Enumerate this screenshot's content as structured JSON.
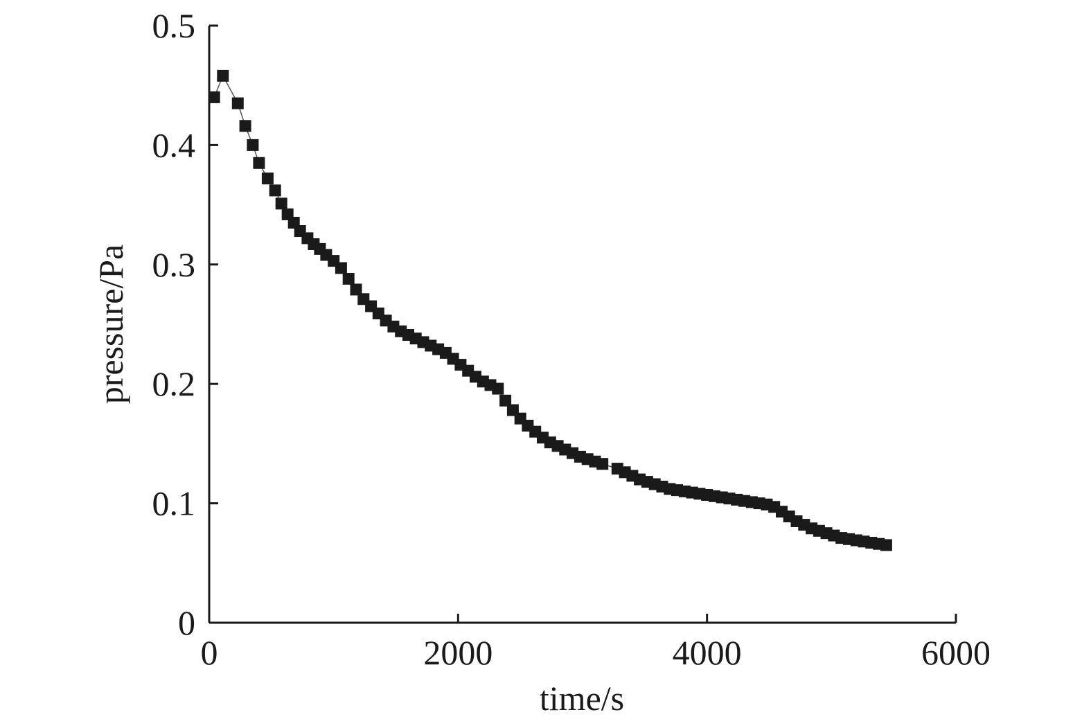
{
  "chart_data": {
    "type": "line",
    "title": "",
    "xlabel": "time/s",
    "ylabel": "pressure/Pa",
    "xlim": [
      0,
      6000
    ],
    "ylim": [
      0,
      0.5
    ],
    "x_ticks": [
      0,
      2000,
      4000,
      6000
    ],
    "x_tick_labels": [
      "0",
      "2000",
      "4000",
      "6000"
    ],
    "y_ticks": [
      0,
      0.1,
      0.2,
      0.3,
      0.4,
      0.5
    ],
    "y_tick_labels": [
      "0",
      "0.1",
      "0.2",
      "0.3",
      "0.4",
      "0.5"
    ],
    "grid": false,
    "marker": "square",
    "series": [
      {
        "color": "#1a1a1a",
        "x": [
          40,
          110,
          230,
          290,
          350,
          400,
          470,
          530,
          580,
          630,
          680,
          730,
          790,
          840,
          890,
          940,
          1000,
          1060,
          1120,
          1180,
          1240,
          1300,
          1360,
          1420,
          1480,
          1540,
          1600,
          1660,
          1720,
          1780,
          1840,
          1900,
          1960,
          2020,
          2080,
          2140,
          2200,
          2260,
          2320,
          2380,
          2440,
          2500,
          2560,
          2620,
          2680,
          2740,
          2800,
          2860,
          2920,
          2980,
          3040,
          3100,
          3160,
          3280,
          3340,
          3400,
          3460,
          3520,
          3580,
          3640,
          3700,
          3760,
          3820,
          3880,
          3940,
          4000,
          4060,
          4120,
          4180,
          4240,
          4300,
          4360,
          4420,
          4480,
          4540,
          4600,
          4660,
          4720,
          4780,
          4840,
          4900,
          4960,
          5020,
          5080,
          5140,
          5200,
          5260,
          5320,
          5380,
          5440
        ],
        "y": [
          0.44,
          0.458,
          0.435,
          0.416,
          0.4,
          0.385,
          0.372,
          0.362,
          0.351,
          0.342,
          0.335,
          0.328,
          0.322,
          0.317,
          0.313,
          0.308,
          0.303,
          0.297,
          0.288,
          0.279,
          0.271,
          0.265,
          0.259,
          0.253,
          0.248,
          0.244,
          0.241,
          0.238,
          0.235,
          0.232,
          0.229,
          0.226,
          0.221,
          0.216,
          0.211,
          0.206,
          0.202,
          0.199,
          0.196,
          0.186,
          0.178,
          0.171,
          0.165,
          0.16,
          0.155,
          0.151,
          0.148,
          0.145,
          0.142,
          0.139,
          0.137,
          0.135,
          0.133,
          0.129,
          0.126,
          0.123,
          0.12,
          0.118,
          0.116,
          0.114,
          0.112,
          0.111,
          0.11,
          0.109,
          0.108,
          0.107,
          0.106,
          0.105,
          0.104,
          0.103,
          0.102,
          0.101,
          0.1,
          0.099,
          0.097,
          0.093,
          0.089,
          0.085,
          0.082,
          0.079,
          0.077,
          0.075,
          0.073,
          0.071,
          0.07,
          0.069,
          0.068,
          0.067,
          0.066,
          0.065
        ]
      }
    ]
  }
}
